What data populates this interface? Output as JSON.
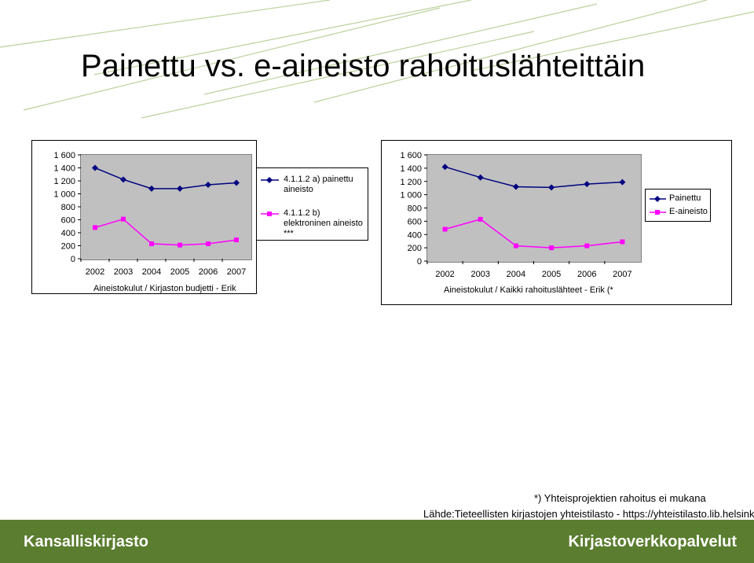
{
  "title": "Painettu vs. e-aineisto rahoituslähteittäin",
  "left_chart": {
    "caption": "Aineistokulut / Kirjaston budjetti - Erik",
    "legend": [
      {
        "label_line1": "4.1.1.2 a) painettu",
        "label_line2": "aineisto"
      },
      {
        "label_line1": "4.1.1.2 b)",
        "label_line2": "elektroninen aineisto",
        "label_line3": "***"
      }
    ]
  },
  "right_chart": {
    "caption": "Aineistokulut / Kaikki rahoituslähteet - Erik (*",
    "legend": [
      {
        "label": "Painettu"
      },
      {
        "label": "E-aineisto"
      }
    ]
  },
  "chart_data": [
    {
      "type": "line",
      "categories": [
        "2002",
        "2003",
        "2004",
        "2005",
        "2006",
        "2007"
      ],
      "yticks": [
        "0",
        "200",
        "400",
        "600",
        "800",
        "1 000",
        "1 200",
        "1 400",
        "1 600"
      ],
      "ylim": [
        0,
        1600
      ],
      "grid": false,
      "series": [
        {
          "name": "4.1.1.2 a) painettu aineisto",
          "color": "#000080",
          "marker": "diamond",
          "values": [
            1400,
            1220,
            1080,
            1080,
            1140,
            1170
          ]
        },
        {
          "name": "4.1.1.2 b) elektroninen aineisto ***",
          "color": "#ff00ff",
          "marker": "square",
          "values": [
            480,
            610,
            230,
            210,
            230,
            290
          ]
        }
      ]
    },
    {
      "type": "line",
      "categories": [
        "2002",
        "2003",
        "2004",
        "2005",
        "2006",
        "2007"
      ],
      "yticks": [
        "0",
        "200",
        "400",
        "600",
        "800",
        "1 000",
        "1 200",
        "1 400",
        "1 600"
      ],
      "ylim": [
        0,
        1600
      ],
      "grid": false,
      "series": [
        {
          "name": "Painettu",
          "color": "#000080",
          "marker": "diamond",
          "values": [
            1420,
            1260,
            1120,
            1110,
            1160,
            1190
          ]
        },
        {
          "name": "E-aineisto",
          "color": "#ff00ff",
          "marker": "square",
          "values": [
            480,
            630,
            230,
            200,
            230,
            290
          ]
        }
      ]
    }
  ],
  "notes": {
    "footnote": "*) Yhteisprojektien rahoitus ei mukana",
    "source": "Lähde:Tieteellisten kirjastojen yhteistilasto - https://yhteistilasto.lib.helsinki.fi/"
  },
  "footer": {
    "left": "Kansalliskirjasto",
    "right": "Kirjastoverkkopalvelut",
    "color": "#5a7d2f"
  }
}
